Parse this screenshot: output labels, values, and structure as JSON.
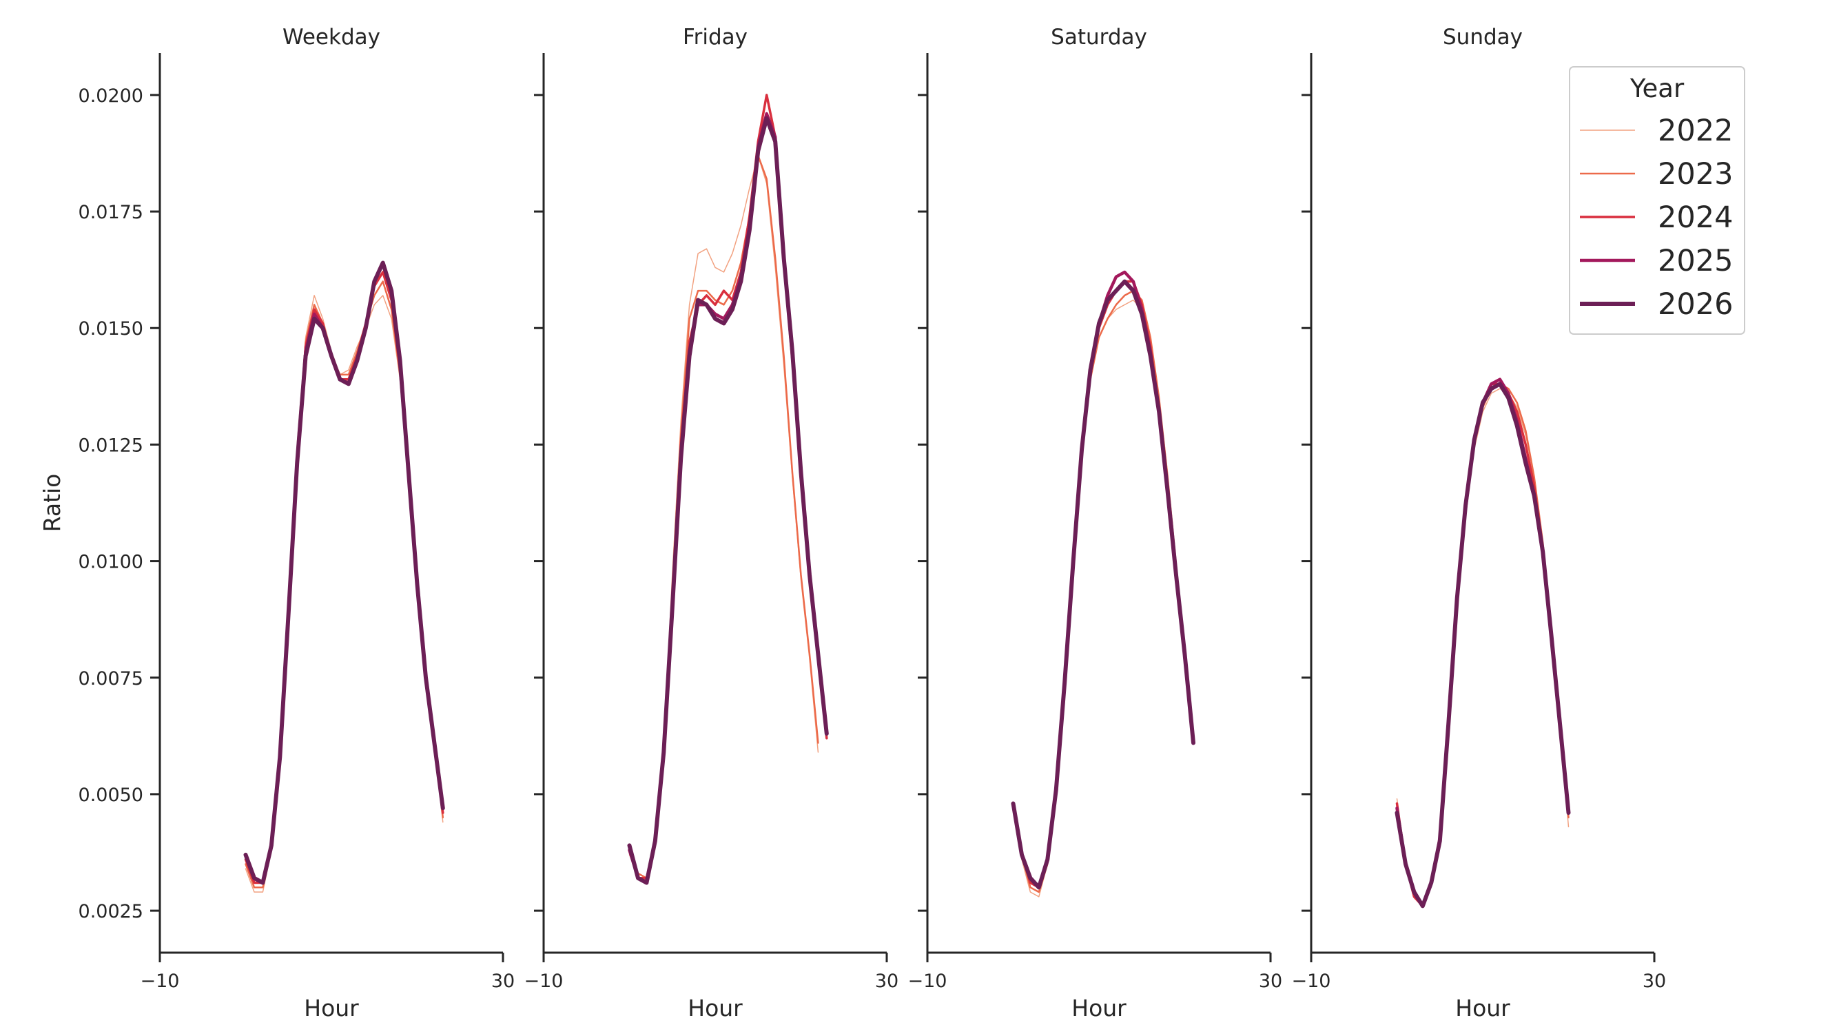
{
  "chart_data": {
    "type": "line",
    "xlabel": "Hour",
    "ylabel": "Ratio",
    "xlim": [
      -10,
      30
    ],
    "ylim": [
      0.0016,
      0.0209
    ],
    "x_ticks": [
      -10,
      30
    ],
    "x_tick_labels": [
      "−10",
      "30"
    ],
    "y_ticks": [
      0.0025,
      0.005,
      0.0075,
      0.01,
      0.0125,
      0.015,
      0.0175,
      0.02
    ],
    "y_tick_labels": [
      "0.0025",
      "0.0050",
      "0.0075",
      "0.0100",
      "0.0125",
      "0.0150",
      "0.0175",
      "0.0200"
    ],
    "grid": false,
    "legend": {
      "title": "Year",
      "placement": "top-right",
      "entries": [
        {
          "label": "2022",
          "color": "#f2a281",
          "width": 1.5
        },
        {
          "label": "2023",
          "color": "#ec6a4a",
          "width": 2.5
        },
        {
          "label": "2024",
          "color": "#d92f3e",
          "width": 3.5
        },
        {
          "label": "2025",
          "color": "#a3195c",
          "width": 4.5
        },
        {
          "label": "2026",
          "color": "#6c1f56",
          "width": 6
        }
      ]
    },
    "panels": [
      {
        "title": "Weekday",
        "x_start": 0,
        "series": [
          {
            "name": "2022",
            "values": [
              0.0034,
              0.0029,
              0.0029,
              0.0038,
              0.0058,
              0.0092,
              0.0125,
              0.0148,
              0.0157,
              0.0152,
              0.0145,
              0.014,
              0.0141,
              0.0146,
              0.015,
              0.0155,
              0.0157,
              0.0152,
              0.0139,
              0.0117,
              0.0094,
              0.0074,
              0.006,
              0.0044
            ]
          },
          {
            "name": "2023",
            "values": [
              0.0035,
              0.003,
              0.003,
              0.0038,
              0.0058,
              0.0091,
              0.0123,
              0.0147,
              0.0155,
              0.0151,
              0.0144,
              0.014,
              0.014,
              0.0145,
              0.0151,
              0.0157,
              0.016,
              0.0154,
              0.014,
              0.0117,
              0.0094,
              0.0074,
              0.0061,
              0.0045
            ]
          },
          {
            "name": "2024",
            "values": [
              0.0036,
              0.0031,
              0.0031,
              0.0039,
              0.0058,
              0.009,
              0.0122,
              0.0146,
              0.0154,
              0.0151,
              0.0144,
              0.0139,
              0.0139,
              0.0144,
              0.0151,
              0.0159,
              0.0162,
              0.0156,
              0.0141,
              0.0118,
              0.0095,
              0.0074,
              0.0061,
              0.0046
            ]
          },
          {
            "name": "2025",
            "values": [
              0.0037,
              0.0032,
              0.0031,
              0.0039,
              0.0058,
              0.0089,
              0.0121,
              0.0145,
              0.0153,
              0.015,
              0.0144,
              0.0139,
              0.0138,
              0.0143,
              0.015,
              0.016,
              0.0164,
              0.0158,
              0.0143,
              0.0119,
              0.0095,
              0.0075,
              0.0061,
              0.0047
            ]
          },
          {
            "name": "2026",
            "values": [
              0.0037,
              0.0032,
              0.0031,
              0.0039,
              0.0058,
              0.0089,
              0.0121,
              0.0144,
              0.0152,
              0.015,
              0.0144,
              0.0139,
              0.0138,
              0.0143,
              0.015,
              0.016,
              0.0164,
              0.0158,
              0.0143,
              0.0119,
              0.0095,
              0.0075,
              0.0061,
              0.0047
            ]
          }
        ]
      },
      {
        "title": "Friday",
        "x_start": 0,
        "series": [
          {
            "name": "2022",
            "values": [
              0.0037,
              0.0033,
              0.0032,
              0.004,
              0.006,
              0.0097,
              0.013,
              0.0155,
              0.0166,
              0.0167,
              0.0163,
              0.0162,
              0.0166,
              0.0172,
              0.018,
              0.0187,
              0.0181,
              0.0163,
              0.0142,
              0.0118,
              0.0096,
              0.0079,
              0.0059
            ]
          },
          {
            "name": "2023",
            "values": [
              0.0038,
              0.0033,
              0.0032,
              0.004,
              0.0059,
              0.0094,
              0.0127,
              0.0152,
              0.0158,
              0.0158,
              0.0156,
              0.0155,
              0.0158,
              0.0164,
              0.0174,
              0.0187,
              0.0182,
              0.0165,
              0.0144,
              0.0119,
              0.0097,
              0.008,
              0.0061
            ]
          },
          {
            "name": "2024",
            "values": [
              0.0038,
              0.0032,
              0.0032,
              0.004,
              0.0059,
              0.0092,
              0.0125,
              0.0147,
              0.0155,
              0.0157,
              0.0155,
              0.0158,
              0.0156,
              0.0162,
              0.0174,
              0.019,
              0.02,
              0.0191,
              0.0164,
              0.0143,
              0.0118,
              0.0096,
              0.0079,
              0.0062
            ]
          },
          {
            "name": "2025",
            "values": [
              0.0038,
              0.0032,
              0.0031,
              0.004,
              0.0059,
              0.0091,
              0.0123,
              0.0145,
              0.0155,
              0.0155,
              0.0153,
              0.0152,
              0.0155,
              0.0161,
              0.0172,
              0.0189,
              0.0196,
              0.0191,
              0.0165,
              0.0145,
              0.0119,
              0.0097,
              0.008,
              0.0063
            ]
          },
          {
            "name": "2026",
            "values": [
              0.0039,
              0.0032,
              0.0031,
              0.004,
              0.0059,
              0.009,
              0.0122,
              0.0144,
              0.0156,
              0.0155,
              0.0152,
              0.0151,
              0.0154,
              0.016,
              0.0171,
              0.0188,
              0.0195,
              0.019,
              0.0165,
              0.0145,
              0.0119,
              0.0097,
              0.008,
              0.0063
            ]
          }
        ]
      },
      {
        "title": "Saturday",
        "x_start": 0,
        "series": [
          {
            "name": "2022",
            "values": [
              0.0047,
              0.0036,
              0.0029,
              0.0028,
              0.0035,
              0.0049,
              0.0072,
              0.01,
              0.0124,
              0.014,
              0.0148,
              0.0152,
              0.0154,
              0.0155,
              0.0156,
              0.0154,
              0.0147,
              0.0135,
              0.0119,
              0.01,
              0.0081,
              0.0061
            ]
          },
          {
            "name": "2023",
            "values": [
              0.0047,
              0.0037,
              0.003,
              0.0029,
              0.0035,
              0.005,
              0.0072,
              0.0099,
              0.0123,
              0.0139,
              0.0148,
              0.0152,
              0.0155,
              0.0157,
              0.0158,
              0.0156,
              0.0148,
              0.0135,
              0.0118,
              0.0099,
              0.008,
              0.0061
            ]
          },
          {
            "name": "2024",
            "values": [
              0.0048,
              0.0037,
              0.0031,
              0.003,
              0.0036,
              0.005,
              0.0073,
              0.0099,
              0.0123,
              0.014,
              0.015,
              0.0155,
              0.0158,
              0.016,
              0.016,
              0.0155,
              0.0146,
              0.0133,
              0.0116,
              0.0098,
              0.008,
              0.0061
            ]
          },
          {
            "name": "2025",
            "values": [
              0.0048,
              0.0037,
              0.0032,
              0.003,
              0.0036,
              0.0051,
              0.0074,
              0.01,
              0.0124,
              0.0141,
              0.0151,
              0.0157,
              0.0161,
              0.0162,
              0.016,
              0.0154,
              0.0145,
              0.0132,
              0.0115,
              0.0097,
              0.008,
              0.0061
            ]
          },
          {
            "name": "2026",
            "values": [
              0.0048,
              0.0037,
              0.0032,
              0.003,
              0.0036,
              0.0051,
              0.0074,
              0.01,
              0.0124,
              0.0141,
              0.0151,
              0.0156,
              0.0158,
              0.016,
              0.0158,
              0.0153,
              0.0144,
              0.0132,
              0.0115,
              0.0097,
              0.008,
              0.0061
            ]
          }
        ]
      },
      {
        "title": "Sunday",
        "x_start": 0,
        "series": [
          {
            "name": "2022",
            "values": [
              0.0049,
              0.0035,
              0.0028,
              0.0026,
              0.0031,
              0.0041,
              0.0063,
              0.009,
              0.011,
              0.0124,
              0.0132,
              0.0136,
              0.0137,
              0.0136,
              0.0133,
              0.0127,
              0.0118,
              0.0104,
              0.0086,
              0.0064,
              0.0043
            ]
          },
          {
            "name": "2023",
            "values": [
              0.0048,
              0.0035,
              0.0028,
              0.0026,
              0.0031,
              0.0041,
              0.0064,
              0.009,
              0.011,
              0.0125,
              0.0133,
              0.0137,
              0.0138,
              0.0137,
              0.0134,
              0.0128,
              0.0118,
              0.0104,
              0.0086,
              0.0065,
              0.0045
            ]
          },
          {
            "name": "2024",
            "values": [
              0.0048,
              0.0035,
              0.0028,
              0.0026,
              0.0031,
              0.0041,
              0.0064,
              0.0091,
              0.0111,
              0.0126,
              0.0134,
              0.0138,
              0.0138,
              0.0136,
              0.0132,
              0.0125,
              0.0116,
              0.0103,
              0.0085,
              0.0065,
              0.0046
            ]
          },
          {
            "name": "2025",
            "values": [
              0.0047,
              0.0035,
              0.0029,
              0.0026,
              0.0031,
              0.004,
              0.0065,
              0.0092,
              0.0112,
              0.0126,
              0.0134,
              0.0138,
              0.0139,
              0.0136,
              0.013,
              0.0122,
              0.0114,
              0.0102,
              0.0084,
              0.0065,
              0.0046
            ]
          },
          {
            "name": "2026",
            "values": [
              0.0046,
              0.0035,
              0.0029,
              0.0026,
              0.0031,
              0.004,
              0.0065,
              0.0092,
              0.0112,
              0.0126,
              0.0134,
              0.0137,
              0.0138,
              0.0135,
              0.0129,
              0.0121,
              0.0114,
              0.0102,
              0.0084,
              0.0065,
              0.0046
            ]
          }
        ]
      }
    ]
  }
}
